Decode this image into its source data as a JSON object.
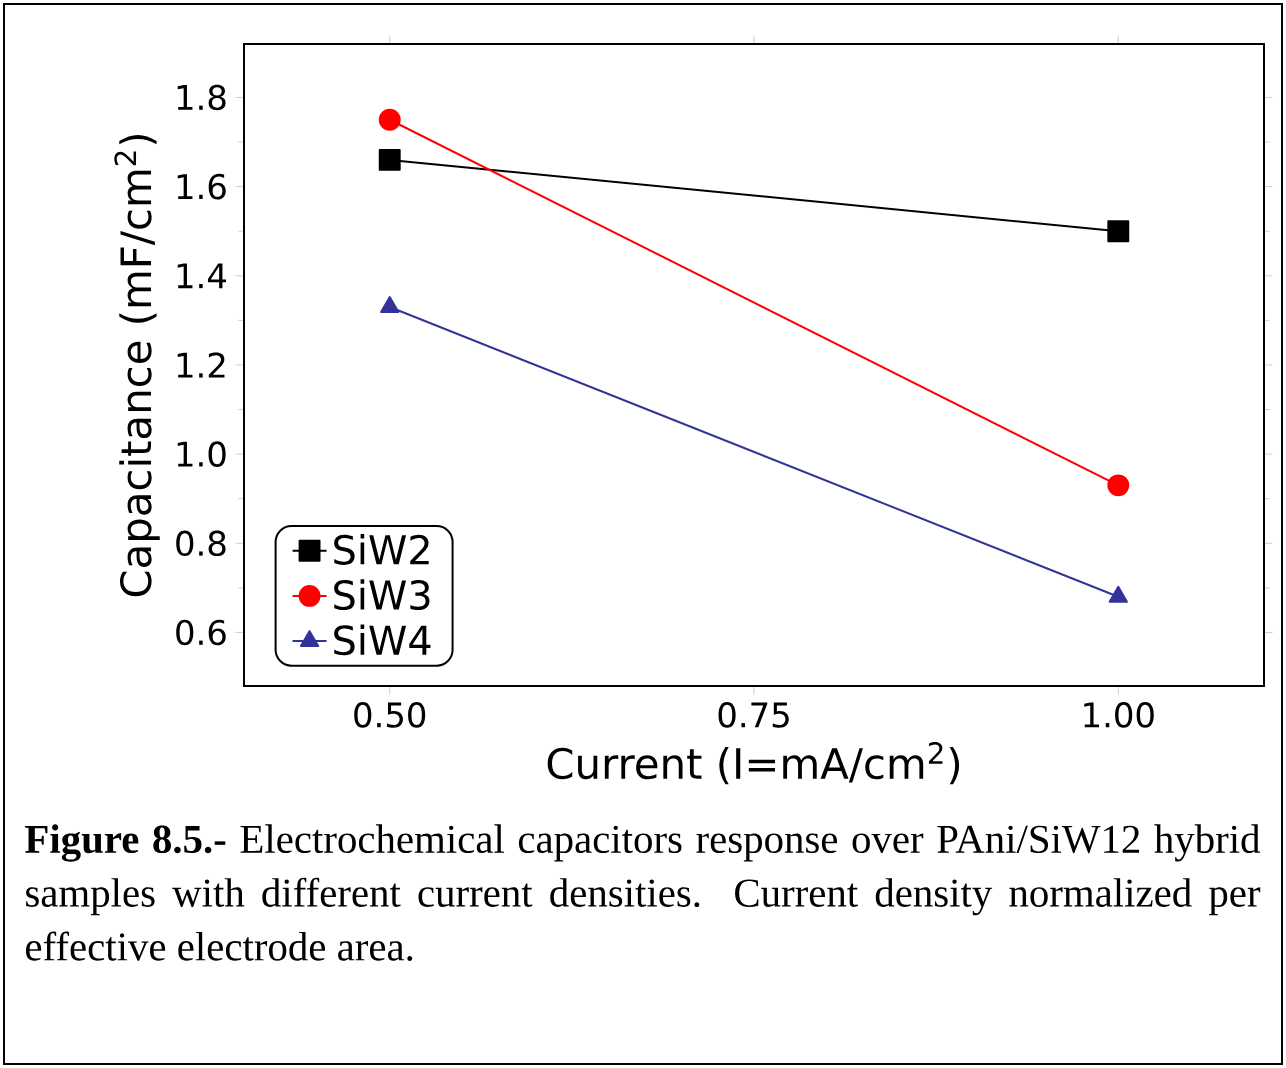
{
  "chart_data": {
    "type": "line",
    "xlabel": "Current (I=mA/cm$^{2}$)",
    "ylabel": "Capacitance (mF/cm$^{2}$)",
    "x": [
      0.5,
      1.0
    ],
    "xlim": [
      0.4,
      1.1
    ],
    "ylim": [
      0.48,
      1.92
    ],
    "xticks": [
      {
        "value": 0.5,
        "label": "0.50"
      },
      {
        "value": 0.75,
        "label": "0.75"
      },
      {
        "value": 1.0,
        "label": "1.00"
      }
    ],
    "yticks": [
      {
        "value": 0.6,
        "label": "0.6"
      },
      {
        "value": 0.8,
        "label": "0.8"
      },
      {
        "value": 1.0,
        "label": "1.0"
      },
      {
        "value": 1.2,
        "label": "1.2"
      },
      {
        "value": 1.4,
        "label": "1.4"
      },
      {
        "value": 1.6,
        "label": "1.6"
      },
      {
        "value": 1.8,
        "label": "1.8"
      }
    ],
    "series": [
      {
        "name": "SiW2",
        "color": "#000000",
        "marker": "square",
        "values": [
          1.66,
          1.5
        ]
      },
      {
        "name": "SiW3",
        "color": "#ff0000",
        "marker": "circle",
        "values": [
          1.75,
          0.93
        ]
      },
      {
        "name": "SiW4",
        "color": "#333399",
        "marker": "triangle",
        "values": [
          1.33,
          0.68
        ]
      }
    ],
    "legend": "bottom left",
    "grid": false,
    "annotations": [
      "**Figure 8.5.-** Electrochemical capacitors response over PAni/SiW12 hybrid samples with different current densities. Current density normalized per effective electrode area."
    ]
  }
}
